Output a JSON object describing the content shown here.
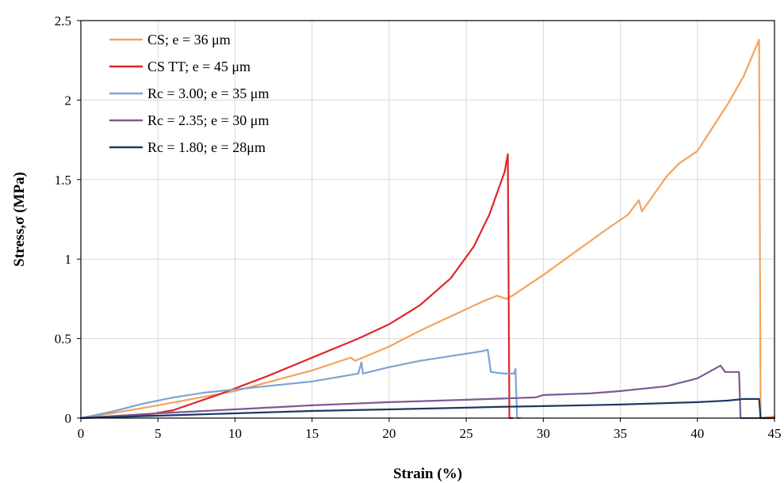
{
  "chart_data": {
    "type": "line",
    "xlabel": "Strain (%)",
    "ylabel": "Stress,σ  (MPa)",
    "xlim": [
      0,
      45
    ],
    "ylim": [
      0,
      2.5
    ],
    "xticks": [
      "0",
      "5",
      "10",
      "15",
      "20",
      "25",
      "30",
      "35",
      "40",
      "45"
    ],
    "yticks": [
      "0",
      "0.5",
      "1",
      "1.5",
      "2",
      "2.5"
    ],
    "grid": true,
    "legend_position": "top-left",
    "series": [
      {
        "name": "CS; e = 36 μm",
        "color": "#f4a35d",
        "points": [
          [
            0,
            0
          ],
          [
            2,
            0.03
          ],
          [
            5,
            0.08
          ],
          [
            10,
            0.17
          ],
          [
            15,
            0.3
          ],
          [
            17.5,
            0.38
          ],
          [
            17.8,
            0.36
          ],
          [
            20,
            0.45
          ],
          [
            22,
            0.55
          ],
          [
            24,
            0.64
          ],
          [
            26,
            0.73
          ],
          [
            27,
            0.77
          ],
          [
            27.6,
            0.75
          ],
          [
            28,
            0.77
          ],
          [
            30,
            0.9
          ],
          [
            32,
            1.04
          ],
          [
            34,
            1.18
          ],
          [
            35.5,
            1.28
          ],
          [
            36.2,
            1.37
          ],
          [
            36.4,
            1.3
          ],
          [
            38,
            1.52
          ],
          [
            38.8,
            1.6
          ],
          [
            40,
            1.68
          ],
          [
            42,
            1.98
          ],
          [
            43,
            2.15
          ],
          [
            44,
            2.38
          ],
          [
            44.1,
            0
          ],
          [
            45,
            0.01
          ]
        ]
      },
      {
        "name": "CS TT; e = 45 μm",
        "color": "#e0262b",
        "points": [
          [
            0,
            0
          ],
          [
            2,
            0.005
          ],
          [
            4,
            0.015
          ],
          [
            6,
            0.05
          ],
          [
            9,
            0.15
          ],
          [
            12,
            0.26
          ],
          [
            15,
            0.38
          ],
          [
            18,
            0.5
          ],
          [
            20,
            0.59
          ],
          [
            22,
            0.71
          ],
          [
            24,
            0.88
          ],
          [
            25.5,
            1.08
          ],
          [
            26.5,
            1.28
          ],
          [
            27.5,
            1.55
          ],
          [
            27.7,
            1.66
          ],
          [
            27.8,
            0
          ],
          [
            28,
            0
          ]
        ]
      },
      {
        "name": "Rc = 3.00; e = 35 μm",
        "color": "#7aa4d4",
        "points": [
          [
            0,
            0
          ],
          [
            2,
            0.04
          ],
          [
            4,
            0.09
          ],
          [
            6,
            0.13
          ],
          [
            8,
            0.16
          ],
          [
            10,
            0.18
          ],
          [
            12,
            0.2
          ],
          [
            15,
            0.23
          ],
          [
            18,
            0.28
          ],
          [
            18.2,
            0.35
          ],
          [
            18.3,
            0.28
          ],
          [
            20,
            0.32
          ],
          [
            22,
            0.36
          ],
          [
            24,
            0.39
          ],
          [
            26,
            0.42
          ],
          [
            26.4,
            0.43
          ],
          [
            26.6,
            0.29
          ],
          [
            27.5,
            0.28
          ],
          [
            28.1,
            0.28
          ],
          [
            28.2,
            0.31
          ],
          [
            28.3,
            0
          ],
          [
            28.5,
            0
          ]
        ]
      },
      {
        "name": "Rc = 2.35; e = 30 μm",
        "color": "#7b5b93",
        "points": [
          [
            0,
            0
          ],
          [
            5,
            0.03
          ],
          [
            10,
            0.055
          ],
          [
            15,
            0.08
          ],
          [
            20,
            0.1
          ],
          [
            25,
            0.115
          ],
          [
            29.5,
            0.13
          ],
          [
            30,
            0.145
          ],
          [
            33,
            0.155
          ],
          [
            35,
            0.17
          ],
          [
            38,
            0.2
          ],
          [
            40,
            0.25
          ],
          [
            41.5,
            0.33
          ],
          [
            41.8,
            0.29
          ],
          [
            42.7,
            0.29
          ],
          [
            42.8,
            0
          ],
          [
            45,
            0
          ]
        ]
      },
      {
        "name": "Rc = 1.80; e = 28μm",
        "color": "#1f3864",
        "points": [
          [
            0,
            0
          ],
          [
            5,
            0.015
          ],
          [
            10,
            0.03
          ],
          [
            15,
            0.045
          ],
          [
            20,
            0.055
          ],
          [
            25,
            0.065
          ],
          [
            27,
            0.07
          ],
          [
            30,
            0.075
          ],
          [
            35,
            0.085
          ],
          [
            40,
            0.1
          ],
          [
            42,
            0.11
          ],
          [
            43,
            0.12
          ],
          [
            44,
            0.12
          ],
          [
            44.1,
            0
          ],
          [
            45,
            0
          ]
        ]
      }
    ]
  }
}
